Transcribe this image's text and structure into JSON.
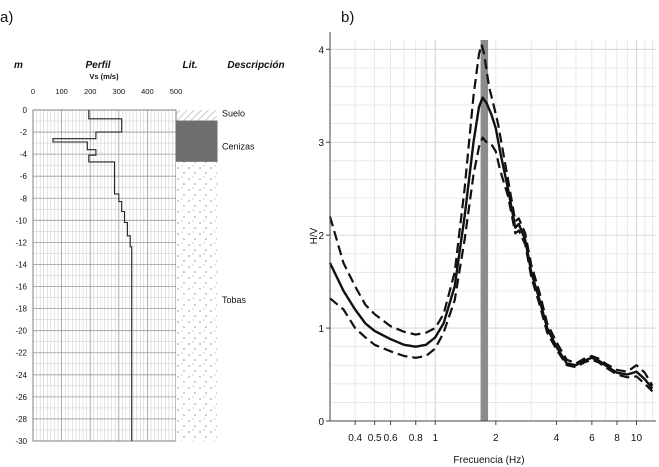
{
  "chart_data": [
    {
      "type": "profile",
      "panel_label": "a)",
      "depth_unit_label": "m",
      "title": "Perfil",
      "xlabel": "Vs (m/s)",
      "lithology_header": "Lit.",
      "description_header": "Descripción",
      "xlim": [
        0,
        500
      ],
      "ylim": [
        -30,
        0
      ],
      "x_ticks": [
        0,
        100,
        200,
        300,
        400,
        500
      ],
      "y_ticks": [
        0,
        -2,
        -4,
        -6,
        -8,
        -10,
        -12,
        -14,
        -16,
        -18,
        -20,
        -22,
        -24,
        -26,
        -28,
        -30
      ],
      "grid": true,
      "vs_profile": [
        [
          195,
          0
        ],
        [
          195,
          -0.8
        ],
        [
          310,
          -0.8
        ],
        [
          310,
          -2.0
        ],
        [
          220,
          -2.0
        ],
        [
          220,
          -2.6
        ],
        [
          70,
          -2.6
        ],
        [
          70,
          -2.9
        ],
        [
          190,
          -2.9
        ],
        [
          190,
          -3.6
        ],
        [
          220,
          -3.6
        ],
        [
          220,
          -4.1
        ],
        [
          195,
          -4.1
        ],
        [
          195,
          -4.7
        ],
        [
          285,
          -4.7
        ],
        [
          285,
          -7.6
        ],
        [
          300,
          -7.6
        ],
        [
          300,
          -8.3
        ],
        [
          310,
          -8.3
        ],
        [
          310,
          -9.2
        ],
        [
          320,
          -9.2
        ],
        [
          320,
          -10.2
        ],
        [
          330,
          -10.2
        ],
        [
          330,
          -11.4
        ],
        [
          340,
          -11.4
        ],
        [
          340,
          -12.4
        ],
        [
          345,
          -12.4
        ],
        [
          345,
          -30
        ]
      ],
      "layers": [
        {
          "name": "Suelo",
          "top": 0,
          "bottom": -1.0,
          "pattern": "hatch",
          "label_depth": -0.3
        },
        {
          "name": "Cenizas",
          "top": -1.0,
          "bottom": -4.7,
          "pattern": "solid",
          "label_depth": -3.3
        },
        {
          "name": "Tobas",
          "top": -4.7,
          "bottom": -30,
          "pattern": "dots",
          "label_depth": -17.2
        }
      ]
    },
    {
      "type": "line",
      "panel_label": "b)",
      "xlabel": "Frecuencia (Hz)",
      "ylabel": "H/V",
      "x_scale": "log",
      "xlim": [
        0.3,
        12.5
      ],
      "ylim": [
        0,
        4.1
      ],
      "x_ticks": [
        0.4,
        0.5,
        0.6,
        0.8,
        1,
        2,
        4,
        6,
        8,
        10
      ],
      "x_tick_labels": [
        "0.4",
        "0.5",
        "0.6",
        "0.8",
        "1",
        "2",
        "4",
        "6",
        "8",
        "10"
      ],
      "y_ticks": [
        0,
        1,
        2,
        3,
        4
      ],
      "grid": true,
      "peak_band": {
        "x_min": 1.68,
        "x_max": 1.83,
        "color": "#8c8c8c"
      },
      "series": [
        {
          "role": "mean",
          "style": "solid",
          "x": [
            0.3,
            0.35,
            0.4,
            0.45,
            0.5,
            0.6,
            0.7,
            0.8,
            0.9,
            1.0,
            1.1,
            1.25,
            1.4,
            1.55,
            1.65,
            1.72,
            1.8,
            1.9,
            2.0,
            2.1,
            2.3,
            2.5,
            2.6,
            2.8,
            3.0,
            3.3,
            3.6,
            4.0,
            4.5,
            5.0,
            5.5,
            6.0,
            6.5,
            7.0,
            8.0,
            9.0,
            10.0,
            11.0,
            12.0
          ],
          "y": [
            1.7,
            1.4,
            1.2,
            1.05,
            0.97,
            0.88,
            0.82,
            0.8,
            0.82,
            0.9,
            1.05,
            1.45,
            2.2,
            3.0,
            3.38,
            3.48,
            3.42,
            3.3,
            3.15,
            2.9,
            2.5,
            2.08,
            2.12,
            1.95,
            1.6,
            1.3,
            1.0,
            0.8,
            0.62,
            0.6,
            0.65,
            0.68,
            0.65,
            0.6,
            0.52,
            0.5,
            0.53,
            0.45,
            0.35
          ]
        },
        {
          "role": "upper",
          "style": "dashed",
          "x": [
            0.3,
            0.35,
            0.4,
            0.45,
            0.5,
            0.6,
            0.7,
            0.8,
            0.9,
            1.0,
            1.1,
            1.25,
            1.4,
            1.55,
            1.65,
            1.7,
            1.75,
            1.85,
            1.95,
            2.05,
            2.3,
            2.5,
            2.6,
            2.8,
            3.0,
            3.3,
            3.6,
            4.0,
            4.5,
            5.0,
            5.5,
            6.0,
            6.5,
            7.0,
            8.0,
            9.0,
            10.0,
            11.0,
            12.0
          ],
          "y": [
            2.2,
            1.7,
            1.45,
            1.25,
            1.15,
            1.02,
            0.96,
            0.93,
            0.95,
            1.0,
            1.15,
            1.6,
            2.5,
            3.5,
            3.95,
            4.05,
            3.95,
            3.6,
            3.4,
            3.2,
            2.6,
            2.15,
            2.18,
            2.02,
            1.68,
            1.38,
            1.05,
            0.85,
            0.66,
            0.62,
            0.67,
            0.7,
            0.67,
            0.62,
            0.55,
            0.53,
            0.6,
            0.52,
            0.38
          ]
        },
        {
          "role": "lower",
          "style": "dashed",
          "x": [
            0.3,
            0.35,
            0.4,
            0.45,
            0.5,
            0.6,
            0.7,
            0.8,
            0.9,
            1.0,
            1.1,
            1.25,
            1.4,
            1.55,
            1.65,
            1.72,
            1.8,
            1.9,
            2.0,
            2.1,
            2.3,
            2.5,
            2.6,
            2.8,
            3.0,
            3.3,
            3.6,
            4.0,
            4.5,
            5.0,
            5.5,
            6.0,
            6.5,
            7.0,
            8.0,
            9.0,
            10.0,
            11.0,
            12.0
          ],
          "y": [
            1.32,
            1.2,
            1.0,
            0.9,
            0.82,
            0.75,
            0.7,
            0.68,
            0.7,
            0.78,
            0.95,
            1.3,
            1.95,
            2.65,
            2.95,
            3.05,
            3.0,
            2.98,
            2.9,
            2.7,
            2.42,
            2.02,
            2.05,
            1.9,
            1.55,
            1.25,
            0.95,
            0.77,
            0.6,
            0.58,
            0.63,
            0.66,
            0.63,
            0.58,
            0.5,
            0.47,
            0.48,
            0.4,
            0.32
          ]
        }
      ]
    }
  ]
}
